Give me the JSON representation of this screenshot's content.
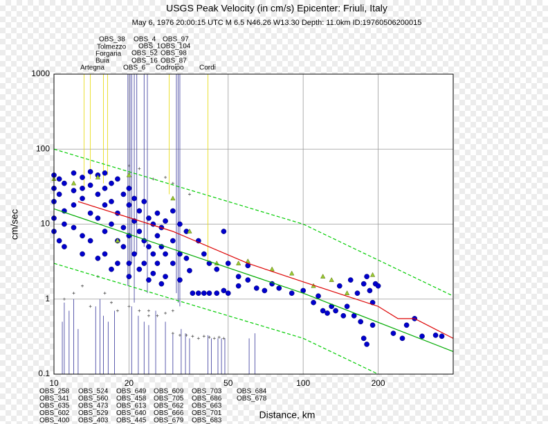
{
  "chart_data": {
    "type": "scatter",
    "title": "USGS Peak Velocity (in cm/s) Epicenter: Friuli, Italy",
    "subtitle": "May  6, 1976 20:00:15 UTC   M 6.5   N46.26 W13.30   Depth: 11.0km   ID:19760506200015",
    "xlabel": "Distance, km",
    "ylabel": "cm/sec",
    "xscale": "log",
    "yscale": "log",
    "xlim": [
      10,
      400
    ],
    "ylim": [
      0.1,
      1000
    ],
    "xticks": [
      10,
      20,
      50,
      100,
      200
    ],
    "yticks": [
      0.1,
      1,
      10,
      100,
      1000
    ],
    "grid": true,
    "series": [
      {
        "marker": "circle",
        "color": "#0000cc",
        "x": [
          10,
          10,
          10,
          10,
          10,
          10.5,
          10.5,
          10.5,
          11,
          11,
          11,
          11,
          12,
          12,
          12,
          12,
          13,
          13,
          13,
          13,
          13,
          14,
          14,
          14,
          14,
          15,
          15,
          15,
          15,
          16,
          16,
          16,
          16,
          16,
          17,
          17,
          17,
          17,
          18,
          18,
          18,
          18,
          19,
          19,
          19,
          20,
          20,
          20,
          20,
          20,
          21,
          21,
          21,
          22,
          22,
          22,
          23,
          23,
          23,
          24,
          24,
          24,
          25,
          25,
          25,
          26,
          26,
          26,
          27,
          27,
          27,
          28,
          28,
          28,
          30,
          30,
          30,
          32,
          32,
          32,
          34,
          34,
          35,
          36,
          38,
          38,
          40,
          40,
          42,
          42,
          45,
          45,
          48,
          48,
          50,
          50,
          55,
          55,
          60,
          60,
          65,
          70,
          75,
          80,
          90,
          100,
          110,
          115,
          120,
          125,
          130,
          135,
          140,
          145,
          150,
          155,
          160,
          165,
          170,
          175,
          180,
          185,
          190,
          195,
          200,
          175,
          180,
          190,
          230,
          250,
          260,
          280,
          300,
          340,
          360
        ],
        "y": [
          45,
          30,
          20,
          12,
          8,
          40,
          25,
          6,
          35,
          15,
          10,
          5,
          48,
          28,
          18,
          9,
          42,
          30,
          22,
          7,
          4,
          50,
          33,
          14,
          6,
          45,
          25,
          12,
          3.5,
          48,
          30,
          18,
          8,
          4,
          35,
          20,
          10,
          2.5,
          40,
          14,
          6,
          3,
          25,
          9,
          5,
          30,
          18,
          7,
          3,
          2,
          22,
          11,
          4,
          15,
          8,
          2.5,
          20,
          6,
          3,
          12,
          5,
          1.8,
          10,
          4,
          2.2,
          14,
          7,
          3,
          9,
          5,
          1.6,
          11,
          4,
          2,
          15,
          6,
          3,
          10,
          4,
          1.8,
          8,
          3.5,
          2.4,
          1.2,
          6,
          1.2,
          4,
          1.2,
          3,
          1.2,
          2.5,
          1.2,
          8,
          1.3,
          1.2,
          3,
          2,
          1.5,
          1.8,
          2.8,
          1.4,
          1.3,
          1.6,
          1.4,
          1.2,
          1.3,
          0.9,
          1.1,
          0.7,
          0.65,
          0.8,
          0.7,
          1.5,
          0.6,
          0.8,
          1.8,
          0.6,
          1.2,
          0.5,
          1.6,
          2,
          1.3,
          0.9,
          1.6,
          1.5,
          0.3,
          0.25,
          0.45,
          0.35,
          0.3,
          0.45,
          0.55,
          0.32,
          0.33,
          0.32
        ]
      },
      {
        "marker": "triangle",
        "color": "#99cc33",
        "x": [
          10,
          12,
          15,
          18,
          20,
          30,
          35,
          45,
          55,
          60,
          75,
          90,
          110,
          120,
          150,
          190,
          130
        ],
        "y": [
          40,
          35,
          42,
          6,
          45,
          22,
          8,
          3,
          3,
          3.2,
          2.5,
          2.2,
          1.5,
          2,
          1.2,
          2.1,
          1.8
        ]
      },
      {
        "marker": "cross",
        "color": "#555555",
        "x": [
          11,
          12,
          13,
          14,
          15,
          16,
          17,
          18,
          20,
          22,
          24,
          26,
          28,
          30,
          32,
          34,
          36,
          38,
          40,
          42,
          44,
          46,
          48,
          25,
          30,
          28,
          22,
          20,
          35,
          24,
          30
        ],
        "y": [
          1,
          1.2,
          1.5,
          0.8,
          2,
          1.2,
          0.9,
          0.7,
          0.8,
          0.7,
          0.6,
          0.6,
          0.65,
          0.35,
          0.33,
          0.33,
          0.32,
          0.3,
          0.32,
          0.31,
          0.3,
          0.31,
          0.3,
          40,
          35,
          42,
          55,
          60,
          25,
          0.7,
          0.7
        ]
      },
      {
        "marker": "line",
        "color": "#dd0000",
        "x": [
          12.5,
          30,
          60,
          100,
          200,
          240,
          280,
          400
        ],
        "y": [
          20,
          8,
          3,
          1.7,
          0.8,
          0.55,
          0.55,
          0.3
        ]
      },
      {
        "marker": "line",
        "color": "#00aa00",
        "x": [
          10,
          100,
          400
        ],
        "y": [
          16,
          1.2,
          0.2
        ]
      },
      {
        "marker": "dashed",
        "color": "#00cc00",
        "x": [
          10,
          100,
          400
        ],
        "y": [
          100,
          10,
          1.1
        ]
      },
      {
        "marker": "dashed",
        "color": "#00cc00",
        "x": [
          10,
          100,
          200
        ],
        "y": [
          3,
          0.3,
          0.1
        ]
      }
    ],
    "station_color": "#333399",
    "named_station_color": "#e6d800",
    "stations_top": [
      {
        "name": "OBS_38",
        "x": 19.8,
        "y": 1.5
      },
      {
        "name": "OBS_4",
        "x": 21,
        "y": 0.9
      },
      {
        "name": "OBS_97",
        "x": 23.7,
        "y": 1.2
      },
      {
        "name": "OBS_1",
        "x": 20.5,
        "y": 3
      },
      {
        "name": "OBS_104",
        "x": 23,
        "y": 5
      },
      {
        "name": "OBS_52",
        "x": 31,
        "y": 1.2
      },
      {
        "name": "OBS_98",
        "x": 32,
        "y": 0.8
      },
      {
        "name": "OBS_16",
        "x": 20.2,
        "y": 2
      },
      {
        "name": "OBS_87",
        "x": 31.5,
        "y": 0.9
      },
      {
        "name": "OBS_6",
        "x": 21.5,
        "y": 4
      }
    ],
    "stations_named": [
      {
        "name": "Tolmezzo",
        "x": 15.8,
        "y": 35
      },
      {
        "name": "Forgaria",
        "x": 16.4,
        "y": 45
      },
      {
        "name": "Buia",
        "x": 14,
        "y": 40
      },
      {
        "name": "Artegna",
        "x": 13.2,
        "y": 30
      },
      {
        "name": "Codroipo",
        "x": 29,
        "y": 25
      },
      {
        "name": "Cordi",
        "x": 41.5,
        "y": 3
      }
    ],
    "stations_bottom": [
      {
        "name": "OBS_258",
        "x": 11,
        "y": 0.9
      },
      {
        "name": "OBS_341",
        "x": 11.5,
        "y": 0.7
      },
      {
        "name": "OBS_635",
        "x": 12,
        "y": 1
      },
      {
        "name": "OBS_602",
        "x": 10.8,
        "y": 0.5
      },
      {
        "name": "OBS_400",
        "x": 12.5,
        "y": 0.4
      },
      {
        "name": "OBS_524",
        "x": 14.7,
        "y": 0.8
      },
      {
        "name": "OBS_560",
        "x": 15.3,
        "y": 1
      },
      {
        "name": "OBS_473",
        "x": 15.8,
        "y": 0.6
      },
      {
        "name": "OBS_529",
        "x": 16.5,
        "y": 0.5
      },
      {
        "name": "OBS_403",
        "x": 17.5,
        "y": 0.7
      },
      {
        "name": "OBS_649",
        "x": 20.5,
        "y": 0.8
      },
      {
        "name": "OBS_458",
        "x": 21.8,
        "y": 0.6
      },
      {
        "name": "OBS_613",
        "x": 23,
        "y": 0.5
      },
      {
        "name": "OBS_640",
        "x": 24,
        "y": 0.45
      },
      {
        "name": "OBS_445",
        "x": 25.6,
        "y": 0.7
      },
      {
        "name": "OBS_609",
        "x": 28,
        "y": 0.5
      },
      {
        "name": "OBS_705",
        "x": 32.4,
        "y": 0.4
      },
      {
        "name": "OBS_662",
        "x": 33.7,
        "y": 0.35
      },
      {
        "name": "OBS_666",
        "x": 35,
        "y": 0.3
      },
      {
        "name": "OBS_679",
        "x": 30,
        "y": 0.35
      },
      {
        "name": "OBS_703",
        "x": 41.5,
        "y": 0.33
      },
      {
        "name": "OBS_686",
        "x": 42.8,
        "y": 0.3
      },
      {
        "name": "OBS_663",
        "x": 45.5,
        "y": 0.3
      },
      {
        "name": "OBS_701",
        "x": 47,
        "y": 0.3
      },
      {
        "name": "OBS_683",
        "x": 48.5,
        "y": 0.3
      },
      {
        "name": "OBS_684",
        "x": 60.7,
        "y": 0.3
      },
      {
        "name": "OBS_678",
        "x": 64,
        "y": 0.35
      }
    ]
  }
}
